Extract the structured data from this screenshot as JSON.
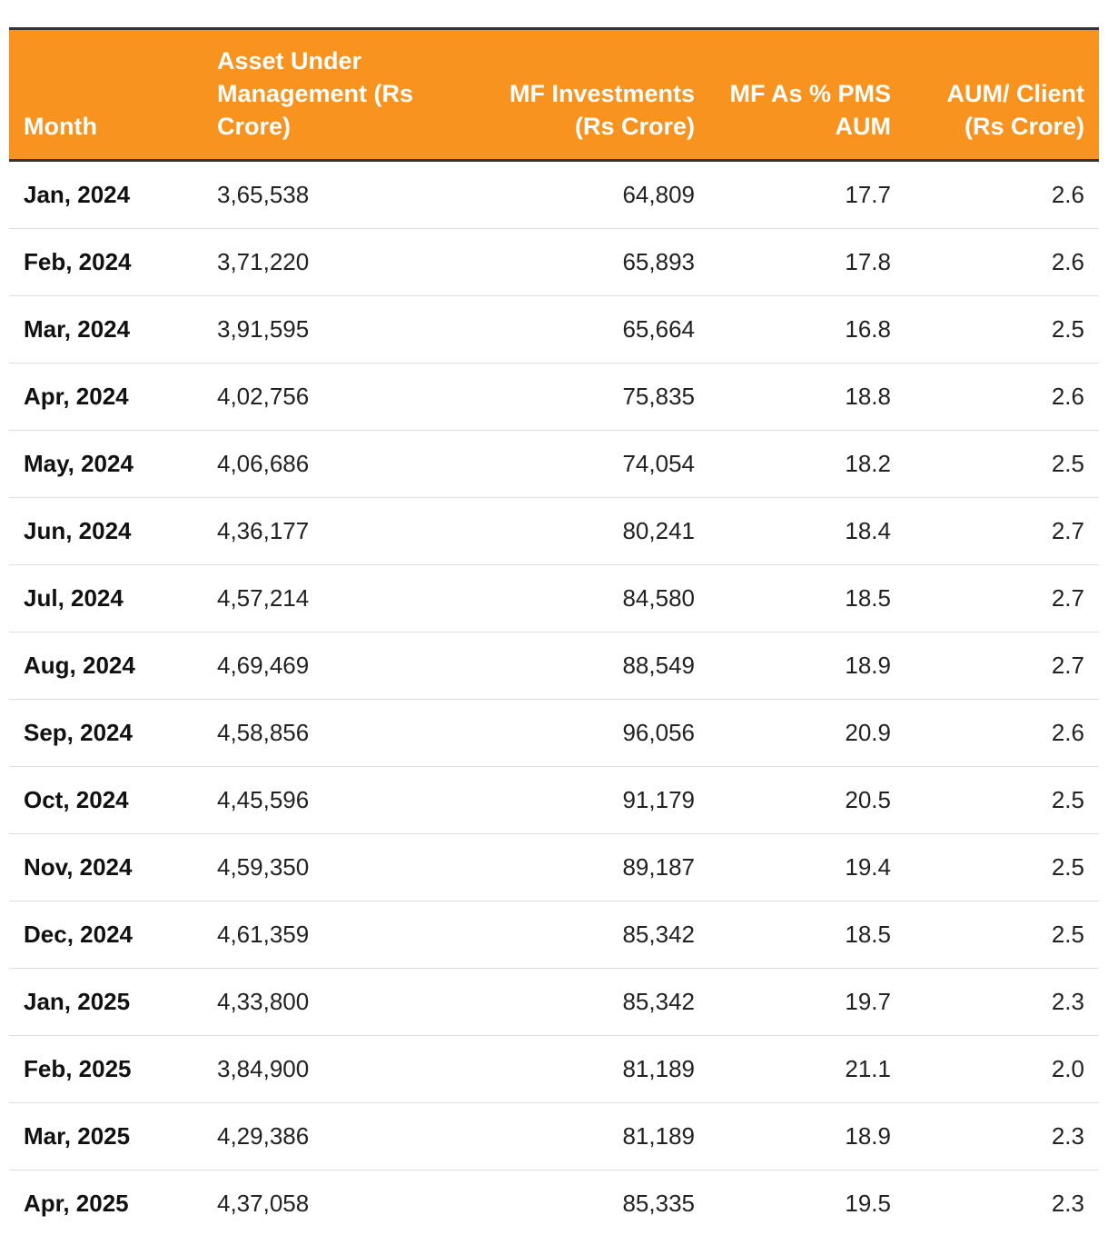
{
  "table": {
    "headers": [
      "Month",
      "Asset Under Management (Rs Crore)",
      "MF Investments (Rs Crore)",
      "MF As % PMS AUM",
      "AUM/ Client (Rs Crore)"
    ],
    "rows": [
      [
        "Jan, 2024",
        "3,65,538",
        "64,809",
        "17.7",
        "2.6"
      ],
      [
        "Feb, 2024",
        "3,71,220",
        "65,893",
        "17.8",
        "2.6"
      ],
      [
        "Mar, 2024",
        "3,91,595",
        "65,664",
        "16.8",
        "2.5"
      ],
      [
        "Apr, 2024",
        "4,02,756",
        "75,835",
        "18.8",
        "2.6"
      ],
      [
        "May, 2024",
        "4,06,686",
        "74,054",
        "18.2",
        "2.5"
      ],
      [
        "Jun, 2024",
        "4,36,177",
        "80,241",
        "18.4",
        "2.7"
      ],
      [
        "Jul, 2024",
        "4,57,214",
        "84,580",
        "18.5",
        "2.7"
      ],
      [
        "Aug, 2024",
        "4,69,469",
        "88,549",
        "18.9",
        "2.7"
      ],
      [
        "Sep, 2024",
        "4,58,856",
        "96,056",
        "20.9",
        "2.6"
      ],
      [
        "Oct, 2024",
        "4,45,596",
        "91,179",
        "20.5",
        "2.5"
      ],
      [
        "Nov, 2024",
        "4,59,350",
        "89,187",
        "19.4",
        "2.5"
      ],
      [
        "Dec, 2024",
        "4,61,359",
        "85,342",
        "18.5",
        "2.5"
      ],
      [
        "Jan, 2025",
        "4,33,800",
        "85,342",
        "19.7",
        "2.3"
      ],
      [
        "Feb, 2025",
        "3,84,900",
        "81,189",
        "21.1",
        "2.0"
      ],
      [
        "Mar, 2025",
        "4,29,386",
        "81,189",
        "18.9",
        "2.3"
      ],
      [
        "Apr, 2025",
        "4,37,058",
        "85,335",
        "19.5",
        "2.3"
      ]
    ]
  }
}
